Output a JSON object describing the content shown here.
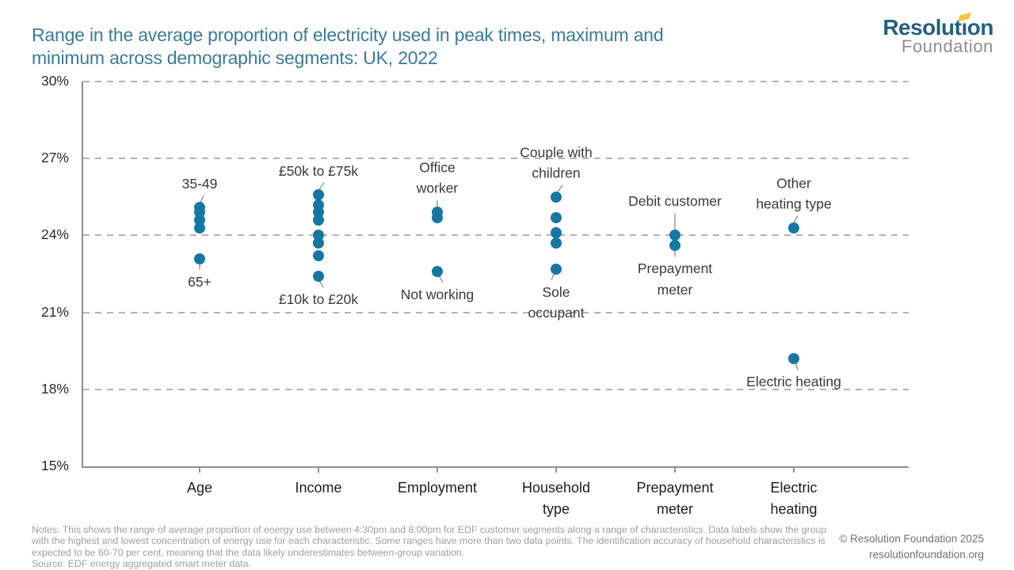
{
  "title": "Range in the average proportion of electricity used in peak times, maximum and\nminimum across demographic segments: UK, 2022",
  "logo": {
    "line1": "Resolution",
    "line2": "Foundation",
    "flag_color": "#f3c53d"
  },
  "footer": {
    "notes": "Notes: This shows the range of average proportion of energy use between 4:30pm and 8:00pm for EDF customer segments along a range of characteristics. Data labels show the group with the highest and lowest concentration of energy use for each characteristic. Some ranges have more than two data points. The identification accuracy of household characteristics is expected to be 60-70 per cent, meaning that the data likely underestimates between-group variation.",
    "source": "Source: EDF energy aggregated smart meter data.",
    "copyright": "© Resolution Foundation 2025",
    "website": "resolutionfoundation.org"
  },
  "chart_data": {
    "type": "scatter",
    "title": "Range in the average proportion of electricity used in peak times, maximum and minimum across demographic segments: UK, 2022",
    "xlabel": "",
    "ylabel": "",
    "ylim": [
      15,
      30
    ],
    "yticks": [
      "30%",
      "27%",
      "24%",
      "21%",
      "18%",
      "15%"
    ],
    "grid": "dashed horizontal",
    "legend": "none",
    "categories": [
      "Age",
      "Income",
      "Employment",
      "Household\ntype",
      "Prepayment\nmeter",
      "Electric\nheating"
    ],
    "series": [
      {
        "category": "Age",
        "values": [
          25.1,
          24.9,
          24.6,
          24.3,
          23.1
        ],
        "max_label": "35-49",
        "min_label": "65+"
      },
      {
        "category": "Income",
        "values": [
          25.6,
          25.2,
          24.9,
          24.6,
          24.0,
          23.7,
          23.2,
          22.4
        ],
        "max_label": "£50k to £75k",
        "min_label": "£10k to £20k"
      },
      {
        "category": "Employment",
        "values": [
          24.9,
          24.7,
          22.6
        ],
        "max_label": "Office\nworker",
        "min_label": "Not working"
      },
      {
        "category": "Household type",
        "values": [
          25.5,
          24.7,
          24.1,
          23.7,
          22.7
        ],
        "max_label": "Couple with\nchildren",
        "min_label": "Sole\noccupant"
      },
      {
        "category": "Prepayment meter",
        "values": [
          24.0,
          23.6
        ],
        "max_label": "Debit customer",
        "min_label": "Prepayment\nmeter"
      },
      {
        "category": "Electric heating",
        "values": [
          24.3,
          19.2
        ],
        "max_label": "Other\nheating type",
        "min_label": "Electric heating"
      }
    ],
    "colors": {
      "dot": "#1578a3",
      "grid": "#b3b3b3",
      "axis": "#8f8f8f",
      "title": "#3a7b97"
    }
  }
}
